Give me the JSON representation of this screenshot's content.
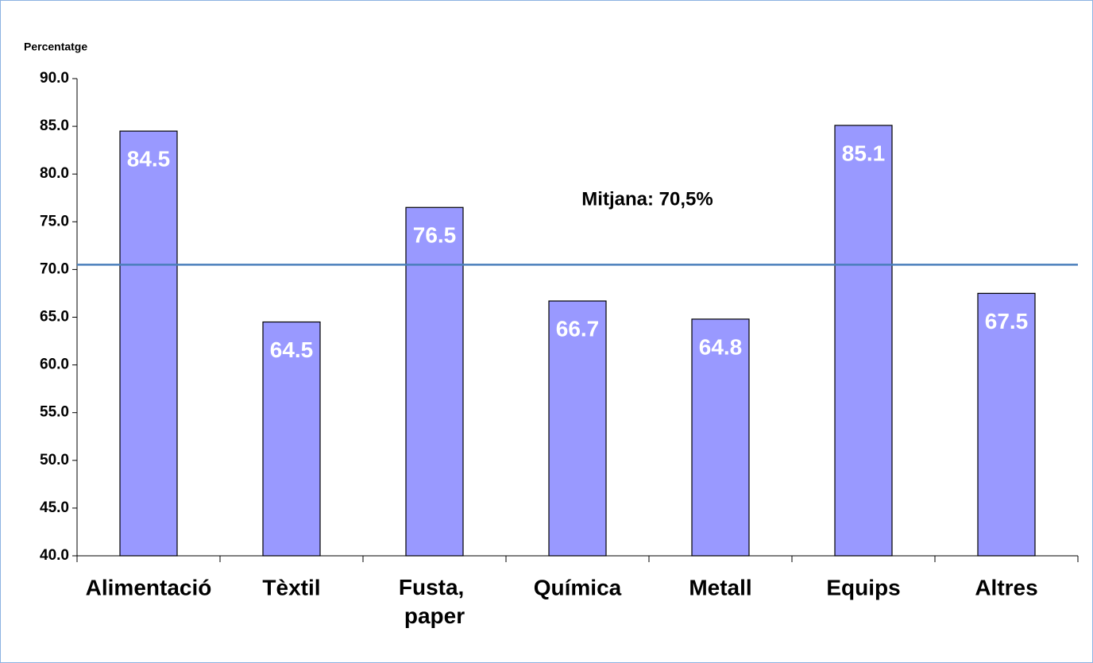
{
  "chart_data": {
    "type": "bar",
    "y_label": "Percentatge",
    "categories": [
      "Alimentació",
      "Tèxtil",
      "Fusta, paper",
      "Química",
      "Metall",
      "Equips",
      "Altres"
    ],
    "values": [
      84.5,
      64.5,
      76.5,
      66.7,
      64.8,
      85.1,
      67.5
    ],
    "color": "#9999ff",
    "ylim": [
      40,
      90
    ],
    "yticks": [
      {
        "value": 40,
        "label": "40.0"
      },
      {
        "value": 45,
        "label": "45.0"
      },
      {
        "value": 50,
        "label": "50.0"
      },
      {
        "value": 55,
        "label": "55.0"
      },
      {
        "value": 60,
        "label": "60.0"
      },
      {
        "value": 65,
        "label": "65.0"
      },
      {
        "value": 70,
        "label": "70.0"
      },
      {
        "value": 75,
        "label": "75.0"
      },
      {
        "value": 80,
        "label": "80.0"
      },
      {
        "value": 85,
        "label": "85.0"
      },
      {
        "value": 90,
        "label": "90.0"
      }
    ],
    "reference_line": {
      "value": 70.5,
      "label": "Mitjana: 70,5%",
      "color": "#4a7ebb"
    }
  }
}
